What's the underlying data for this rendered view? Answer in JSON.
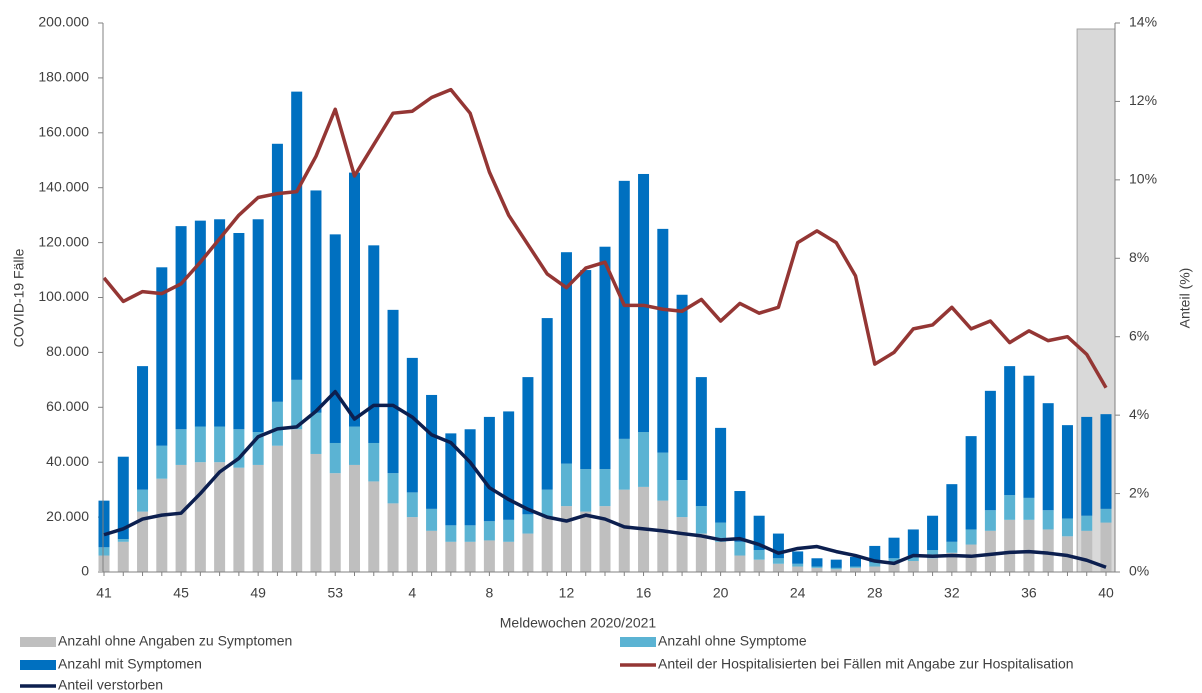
{
  "chart_data": {
    "type": "bar",
    "x_label": "Meldewochen 2020/2021",
    "y_label": "COVID-19 Fälle",
    "y2_label": "Anteil (%)",
    "categories": [
      "41",
      null,
      null,
      null,
      "45",
      null,
      null,
      null,
      "49",
      null,
      null,
      null,
      "53",
      null,
      null,
      null,
      "4",
      null,
      null,
      null,
      "8",
      null,
      null,
      null,
      "12",
      null,
      null,
      null,
      "16",
      null,
      null,
      null,
      "20",
      null,
      null,
      null,
      "24",
      null,
      null,
      null,
      "28",
      null,
      null,
      null,
      "32",
      null,
      null,
      null,
      "36",
      null,
      null,
      null,
      "40"
    ],
    "ylim": [
      0,
      200000
    ],
    "yticks": [
      0,
      {
        "value": 20000,
        "label": "20.000"
      },
      {
        "value": 40000,
        "label": "40.000"
      },
      {
        "value": 60000,
        "label": "60.000"
      },
      {
        "value": 80000,
        "label": "80.000"
      },
      {
        "value": 100000,
        "label": "100.000"
      },
      {
        "value": 120000,
        "label": "120.000"
      },
      {
        "value": 140000,
        "label": "140.000"
      },
      {
        "value": 160000,
        "label": "160.000"
      },
      {
        "value": 180000,
        "label": "180.000"
      },
      {
        "value": 200000,
        "label": "200.000"
      }
    ],
    "y2lim": [
      0,
      14
    ],
    "y2ticks": [
      {
        "value": 0,
        "label": "0%"
      },
      {
        "value": 2,
        "label": "2%"
      },
      {
        "value": 4,
        "label": "4%"
      },
      {
        "value": 6,
        "label": "6%"
      },
      {
        "value": 8,
        "label": "8%"
      },
      {
        "value": 10,
        "label": "10%"
      },
      {
        "value": 12,
        "label": "12%"
      },
      {
        "value": 14,
        "label": "14%"
      }
    ],
    "series": [
      {
        "name": "Anzahl ohne Angaben zu Symptomen",
        "type": "bar",
        "color": "#bfbfbf",
        "values": [
          6000,
          11000,
          22000,
          34000,
          39000,
          40000,
          40000,
          38000,
          39000,
          46000,
          52000,
          43000,
          36000,
          39000,
          33000,
          25000,
          20000,
          15000,
          11000,
          11000,
          11500,
          11000,
          14000,
          20000,
          24000,
          22000,
          24000,
          30000,
          31000,
          26000,
          20000,
          14000,
          11000,
          6000,
          4500,
          3000,
          2000,
          1500,
          1000,
          1500,
          2000,
          3000,
          4000,
          5000,
          7000,
          10000,
          15000,
          19000,
          19000,
          15500,
          13000,
          15000,
          18000
        ]
      },
      {
        "name": "Anzahl ohne Symptome",
        "type": "bar",
        "color": "#5bb3d3",
        "values": [
          3000,
          1000,
          8000,
          12000,
          13000,
          13000,
          13000,
          14000,
          12000,
          16000,
          18000,
          15000,
          11000,
          14000,
          14000,
          11000,
          9000,
          8000,
          6000,
          6000,
          7000,
          8000,
          7000,
          10000,
          15500,
          15500,
          13500,
          18500,
          20000,
          17500,
          13500,
          10000,
          7000,
          5000,
          3500,
          2000,
          1000,
          500,
          500,
          500,
          1500,
          2000,
          2000,
          3000,
          4000,
          5500,
          7500,
          9000,
          8000,
          7000,
          6500,
          5500,
          5000
        ]
      },
      {
        "name": "Anzahl mit Symptomen",
        "type": "bar",
        "color": "#0070c0",
        "values": [
          17000,
          30000,
          45000,
          65000,
          74000,
          75000,
          75500,
          71500,
          77500,
          94000,
          105000,
          81000,
          76000,
          92500,
          72000,
          59500,
          49000,
          41500,
          33500,
          35000,
          38000,
          39500,
          50000,
          62500,
          77000,
          72500,
          81000,
          94000,
          94000,
          81500,
          67500,
          47000,
          34500,
          18500,
          12500,
          9000,
          4500,
          3000,
          3000,
          3500,
          6000,
          7500,
          9500,
          12500,
          21000,
          34000,
          43500,
          47000,
          44500,
          39000,
          34000,
          36000,
          34500
        ]
      },
      {
        "name": "Anteil der Hospitalisierten bei Fällen mit Angabe zur Hospitalisation",
        "type": "line",
        "axis": "y2",
        "color": "#943634",
        "values": [
          7.5,
          6.9,
          7.15,
          7.1,
          7.35,
          7.9,
          8.5,
          9.1,
          9.55,
          9.65,
          9.7,
          10.6,
          11.8,
          10.1,
          10.9,
          11.7,
          11.75,
          12.1,
          12.3,
          11.7,
          10.2,
          9.1,
          8.35,
          7.6,
          7.25,
          7.75,
          7.9,
          6.8,
          6.8,
          6.7,
          6.65,
          6.95,
          6.4,
          6.85,
          6.6,
          6.75,
          8.4,
          8.7,
          8.4,
          7.55,
          5.3,
          5.6,
          6.2,
          6.3,
          6.75,
          6.2,
          6.4,
          5.85,
          6.15,
          5.9,
          6.0,
          5.55,
          4.7
        ]
      },
      {
        "name": "Anteil verstorben",
        "type": "line",
        "axis": "y2",
        "color": "#0c1f4f",
        "values": [
          0.95,
          1.1,
          1.35,
          1.45,
          1.5,
          2.0,
          2.55,
          2.9,
          3.45,
          3.65,
          3.7,
          4.1,
          4.6,
          3.9,
          4.25,
          4.25,
          3.95,
          3.5,
          3.3,
          2.8,
          2.15,
          1.85,
          1.6,
          1.4,
          1.3,
          1.45,
          1.35,
          1.15,
          1.1,
          1.05,
          0.98,
          0.92,
          0.82,
          0.85,
          0.7,
          0.48,
          0.6,
          0.65,
          0.52,
          0.42,
          0.28,
          0.22,
          0.42,
          0.4,
          0.42,
          0.4,
          0.45,
          0.5,
          0.52,
          0.48,
          0.42,
          0.3,
          0.12
        ]
      }
    ]
  }
}
